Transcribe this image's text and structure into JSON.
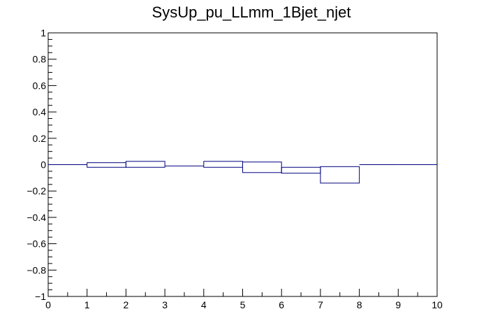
{
  "chart_data": {
    "type": "histogram",
    "title": "SysUp_pu_LLmm_1Bjet_njet",
    "xlabel": "",
    "ylabel": "",
    "xlim": [
      0,
      10
    ],
    "ylim": [
      -1,
      1
    ],
    "x_ticks": [
      "0",
      "1",
      "2",
      "3",
      "4",
      "5",
      "6",
      "7",
      "8",
      "9",
      "10"
    ],
    "y_ticks": [
      "−1",
      "−0.8",
      "−0.6",
      "−0.4",
      "−0.2",
      "0",
      "0.2",
      "0.4",
      "0.6",
      "0.8",
      "1"
    ],
    "line_color": "#000080",
    "series": [
      {
        "bins": [
          {
            "x_low": 0,
            "x_high": 1,
            "band": [
              0,
              0
            ]
          },
          {
            "x_low": 1,
            "x_high": 2,
            "band": [
              -0.02,
              0.015
            ]
          },
          {
            "x_low": 2,
            "x_high": 3,
            "band": [
              -0.02,
              0.025
            ]
          },
          {
            "x_low": 3,
            "x_high": 4,
            "band": [
              -0.01,
              -0.01
            ]
          },
          {
            "x_low": 4,
            "x_high": 5,
            "band": [
              -0.02,
              0.025
            ]
          },
          {
            "x_low": 5,
            "x_high": 6,
            "band": [
              -0.06,
              0.02
            ]
          },
          {
            "x_low": 6,
            "x_high": 7,
            "band": [
              -0.065,
              -0.02
            ]
          },
          {
            "x_low": 7,
            "x_high": 8,
            "band": [
              -0.14,
              -0.015
            ]
          },
          {
            "x_low": 8,
            "x_high": 9,
            "band": [
              0,
              0
            ]
          },
          {
            "x_low": 9,
            "x_high": 10,
            "band": [
              0,
              0
            ]
          }
        ]
      }
    ]
  }
}
